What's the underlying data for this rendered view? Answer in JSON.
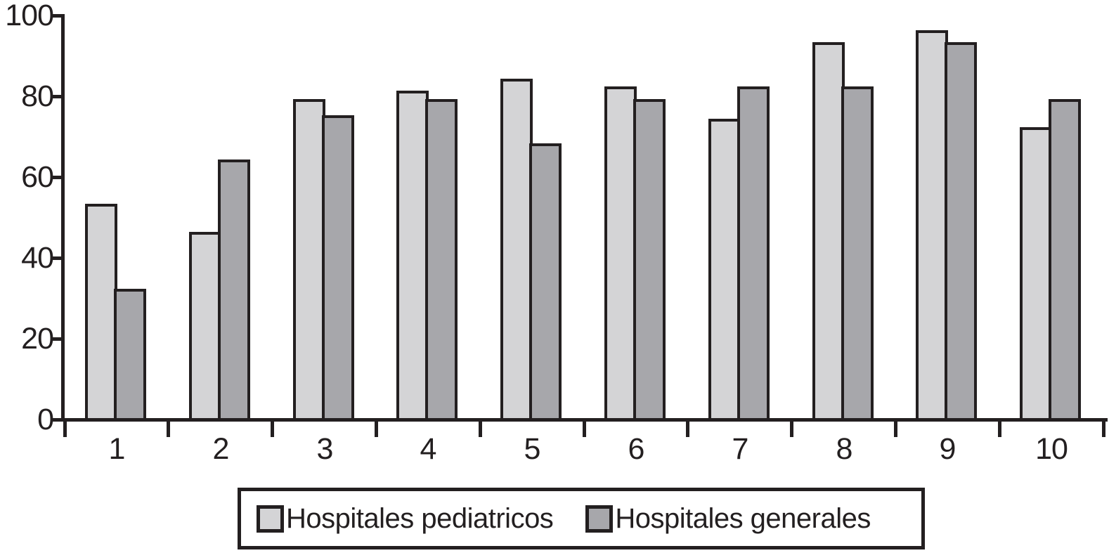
{
  "colors": {
    "line": "#231f20",
    "background": "#ffffff",
    "series_pediatricos": "#d4d4d6",
    "series_generales": "#a7a7ab"
  },
  "chart_data": {
    "type": "bar",
    "title": "",
    "xlabel": "",
    "ylabel": "",
    "categories": [
      "1",
      "2",
      "3",
      "4",
      "5",
      "6",
      "7",
      "8",
      "9",
      "10"
    ],
    "series": [
      {
        "name": "Hospitales pediatricos",
        "color_key": "series_pediatricos",
        "values": [
          53,
          46,
          79,
          81,
          84,
          82,
          74,
          93,
          96,
          72
        ]
      },
      {
        "name": "Hospitales generales",
        "color_key": "series_generales",
        "values": [
          32,
          64,
          75,
          79,
          68,
          79,
          82,
          82,
          93,
          79
        ]
      }
    ],
    "ylim": [
      0,
      100
    ],
    "yticks": [
      0,
      20,
      40,
      60,
      80,
      100
    ],
    "ytick_labels": [
      "0",
      "20",
      "40",
      "60",
      "80",
      "100"
    ],
    "grid": false,
    "legend_position": "bottom"
  }
}
